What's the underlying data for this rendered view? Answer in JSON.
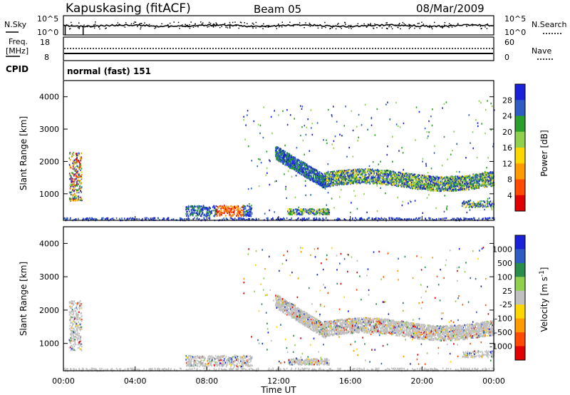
{
  "header": {
    "station": "Kapuskasing (fitACF)",
    "beam": "Beam 05",
    "date": "08/Mar/2009"
  },
  "noise_panel": {
    "left_label": "N.Sky",
    "right_label": "N.Search",
    "left_ticks": [
      "10^5",
      "10^0"
    ],
    "right_ticks": [
      "10^5",
      "10^0"
    ]
  },
  "freq_panel": {
    "left_label_1": "Freq.",
    "left_label_2": "[MHz]",
    "right_label": "Nave",
    "left_ticks": [
      "18",
      "8"
    ],
    "right_ticks": [
      "60",
      "0"
    ]
  },
  "cpid_panel": {
    "label": "CPID",
    "mode_text": "normal (fast) 151"
  },
  "colors": {
    "power": [
      "#1a22d9",
      "#2e5cc4",
      "#2aa02a",
      "#8fd14f",
      "#ffd700",
      "#ff9a00",
      "#ff4a00",
      "#e00000"
    ],
    "velocity": [
      "#1a22d9",
      "#2e5cc4",
      "#2a8c4a",
      "#8fd14f",
      "#c0c0c0",
      "#ffd700",
      "#ff9a00",
      "#ff4a00",
      "#e00000"
    ]
  },
  "chart_data": [
    {
      "type": "heatmap",
      "quantity": "Power",
      "ylabel": "Slant Range [km]",
      "ylim": [
        180,
        4500
      ],
      "xlim": [
        0,
        24
      ],
      "y_ticks": [
        "1000",
        "2000",
        "3000",
        "4000"
      ],
      "colorbar_label": "Power [dB]",
      "colorbar_ticks": [
        "4",
        "8",
        "12",
        "16",
        "20",
        "24",
        "28"
      ],
      "echo_regions": [
        {
          "x": [
            0.3,
            1.0
          ],
          "y": [
            700,
            2300
          ],
          "level": "mixed"
        },
        {
          "x": [
            6.8,
            10.5
          ],
          "y": [
            330,
            700
          ],
          "level": "high"
        },
        {
          "x": [
            11.8,
            14.5
          ],
          "y": [
            1200,
            2500
          ],
          "level": "low"
        },
        {
          "x": [
            14.5,
            24.0
          ],
          "y": [
            1150,
            1800
          ],
          "level": "medium"
        },
        {
          "x": [
            12.5,
            14.8
          ],
          "y": [
            380,
            560
          ],
          "level": "medium"
        },
        {
          "x": [
            22.2,
            24.0
          ],
          "y": [
            600,
            800
          ],
          "level": "medium"
        }
      ]
    },
    {
      "type": "heatmap",
      "quantity": "Velocity",
      "ylabel": "Slant Range [km]",
      "xlabel": "Time UT",
      "ylim": [
        180,
        4500
      ],
      "xlim": [
        0,
        24
      ],
      "x_ticks": [
        "00:00",
        "04:00",
        "08:00",
        "12:00",
        "16:00",
        "20:00",
        "00:00"
      ],
      "y_ticks": [
        "1000",
        "2000",
        "3000",
        "4000"
      ],
      "colorbar_label": "Velocity [m s^-1]",
      "colorbar_ticks": [
        "1000",
        "500",
        "100",
        "25",
        "-25",
        "-100",
        "-500",
        "-1000"
      ]
    }
  ]
}
